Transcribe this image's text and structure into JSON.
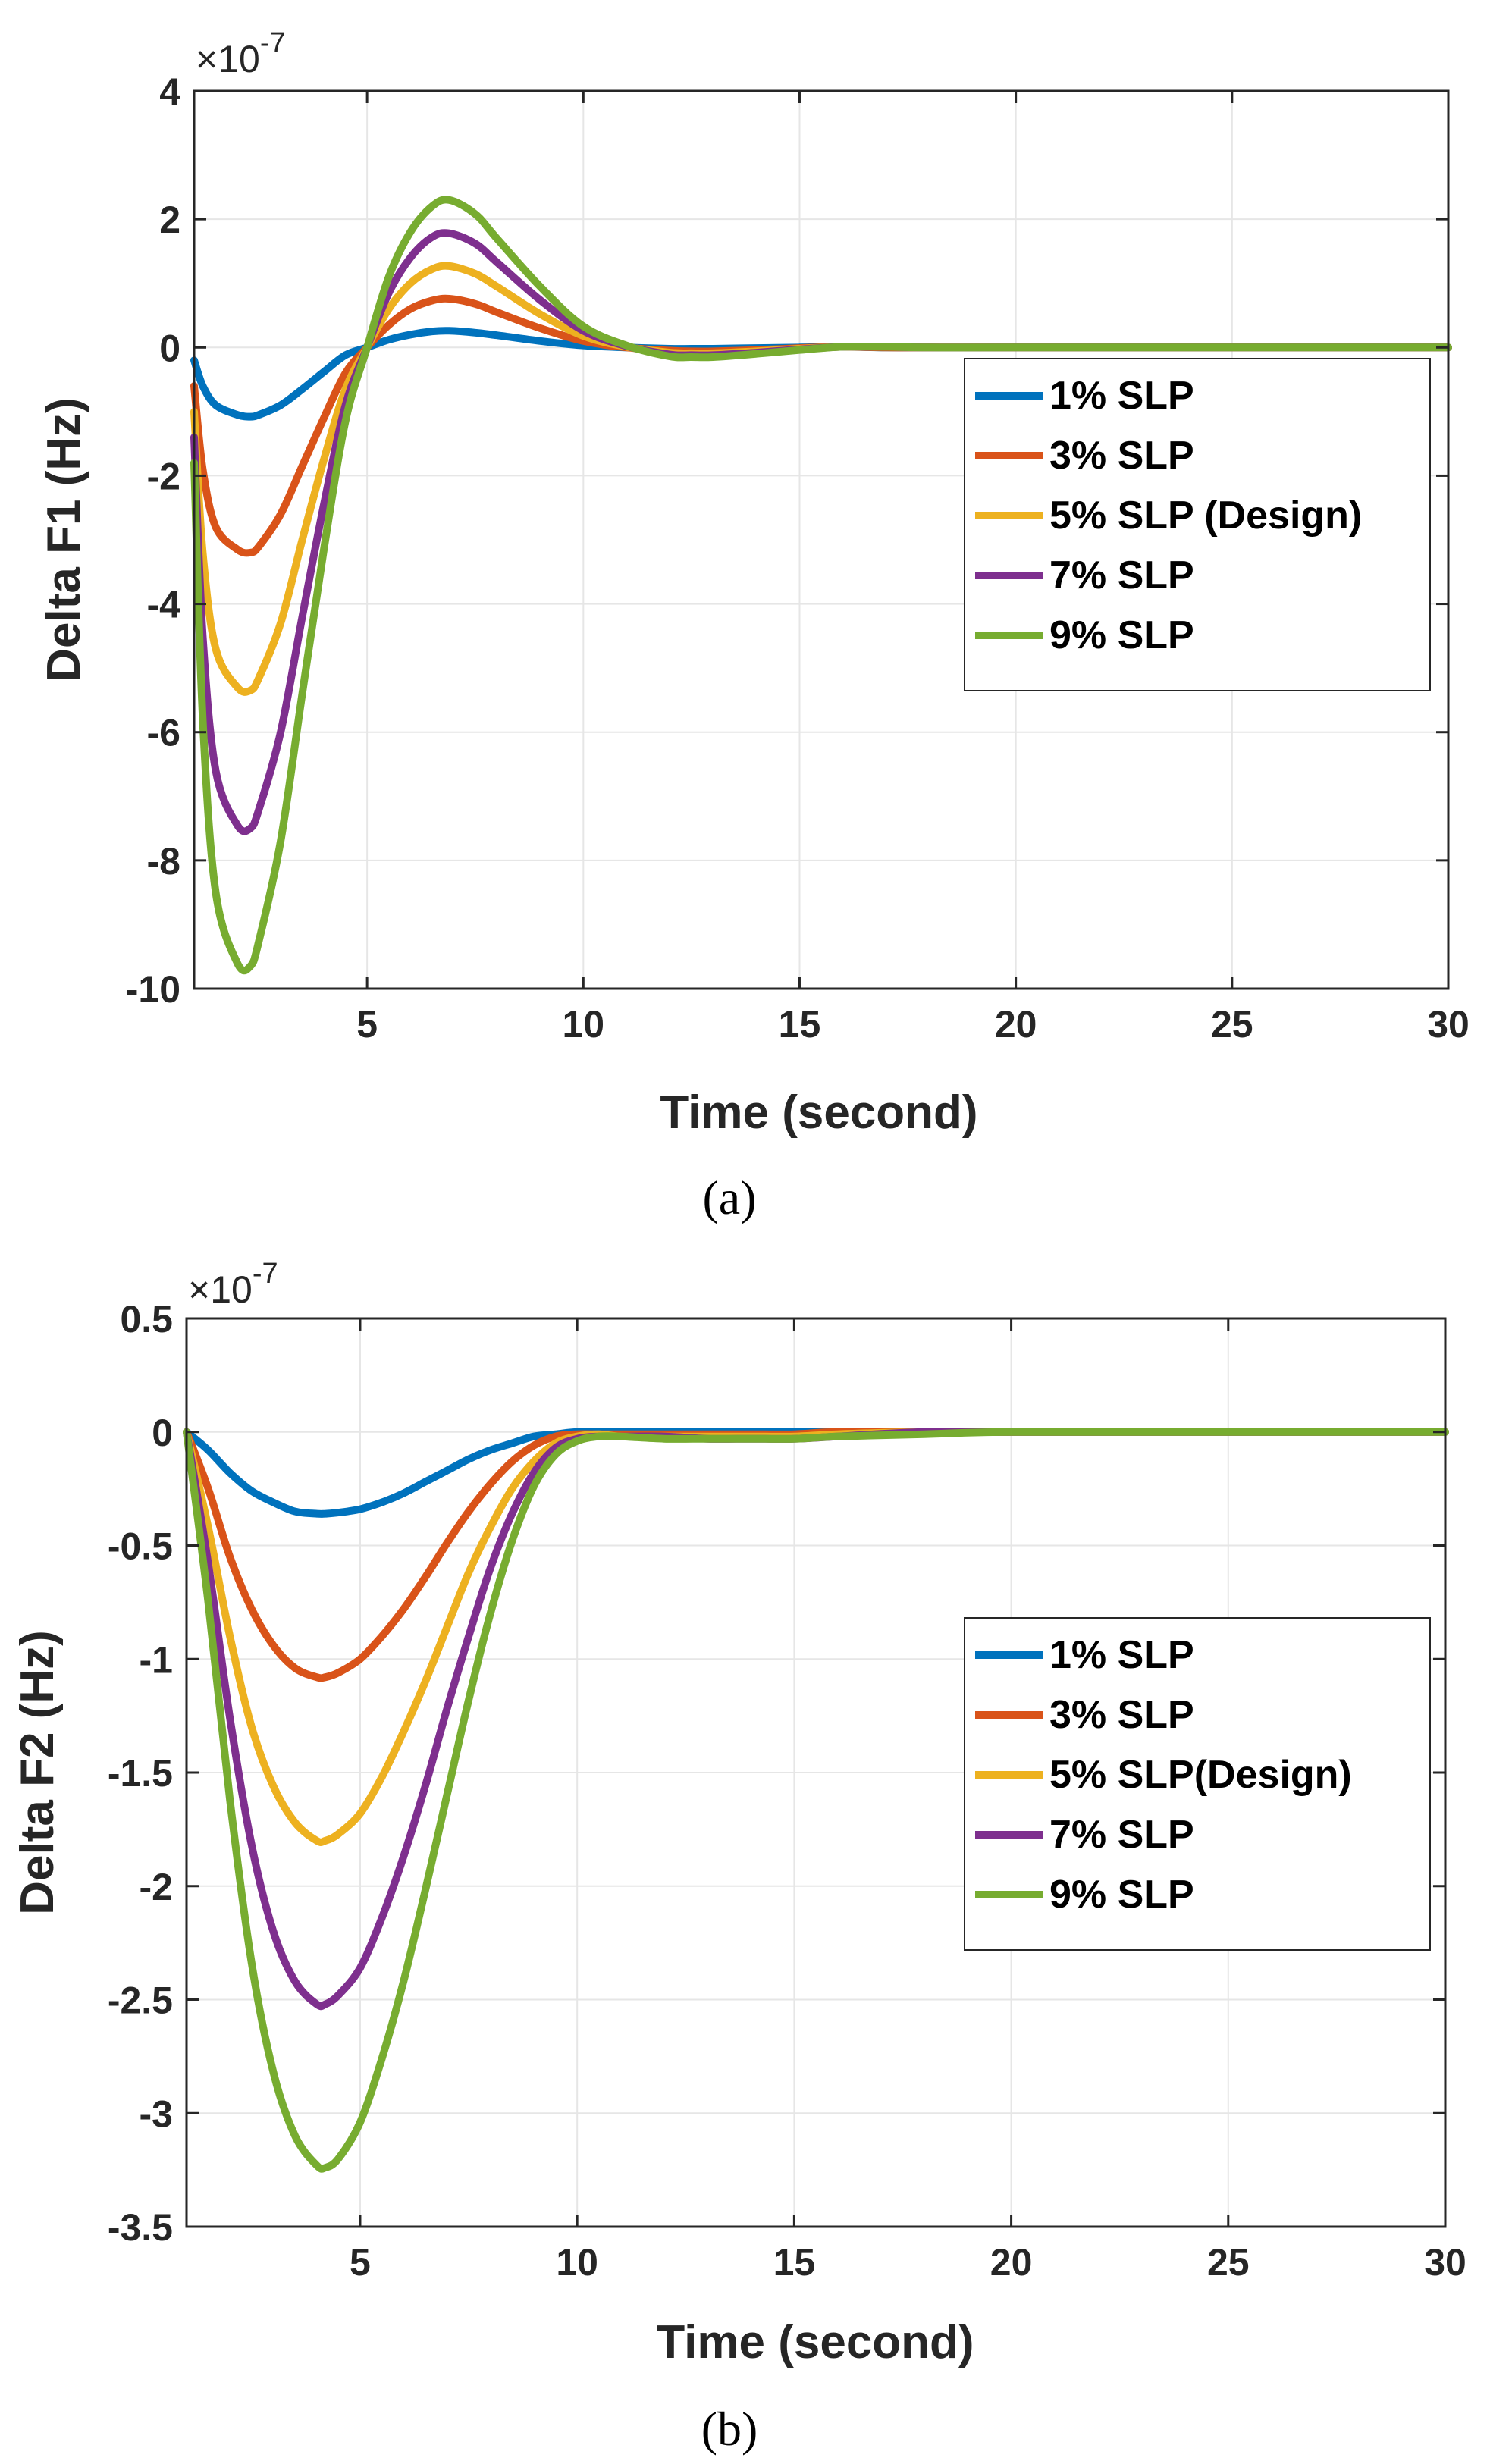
{
  "colors": {
    "series": [
      "#0072BD",
      "#D95319",
      "#EDB120",
      "#7E2F8E",
      "#77AC30"
    ],
    "grid": "#e6e6e6",
    "axis": "#262626"
  },
  "chart_data": [
    {
      "type": "line",
      "panel_label": "(a)",
      "title": "",
      "xlabel": "Time (second)",
      "ylabel": "Delta F1 (Hz)",
      "exponent_label": "×10",
      "exponent_power": "-7",
      "xlim": [
        1,
        30
      ],
      "ylim": [
        -10,
        4
      ],
      "xticks": [
        5,
        10,
        15,
        20,
        25,
        30
      ],
      "xtick_labels": [
        "5",
        "10",
        "15",
        "20",
        "25",
        "30"
      ],
      "yticks": [
        4,
        2,
        0,
        -2,
        -4,
        -6,
        -8,
        -10
      ],
      "ytick_labels": [
        "4",
        "2",
        "0",
        "-2",
        "-4",
        "-6",
        "-8",
        "-10"
      ],
      "grid": true,
      "legend_position": "right",
      "x": [
        1,
        1.2,
        1.5,
        2,
        2.3,
        2.5,
        3,
        3.5,
        4,
        4.5,
        5,
        5.5,
        6,
        6.5,
        6.9,
        7.5,
        8,
        9,
        10,
        11,
        12,
        12.5,
        13,
        14,
        15,
        16,
        17,
        18,
        20,
        25,
        30
      ],
      "series": [
        {
          "name": "1% SLP",
          "values": [
            -0.2,
            -0.6,
            -0.9,
            -1.05,
            -1.08,
            -1.05,
            -0.9,
            -0.65,
            -0.38,
            -0.12,
            0.0,
            0.12,
            0.2,
            0.25,
            0.26,
            0.23,
            0.19,
            0.1,
            0.03,
            0.0,
            -0.02,
            -0.02,
            -0.02,
            -0.01,
            0.0,
            0.01,
            0.0,
            0.0,
            0.0,
            0.0,
            0.0
          ]
        },
        {
          "name": "3% SLP",
          "values": [
            -0.6,
            -1.9,
            -2.8,
            -3.15,
            -3.2,
            -3.1,
            -2.6,
            -1.85,
            -1.1,
            -0.4,
            0.0,
            0.35,
            0.6,
            0.73,
            0.76,
            0.68,
            0.55,
            0.3,
            0.1,
            0.0,
            -0.05,
            -0.06,
            -0.06,
            -0.04,
            -0.01,
            0.01,
            0.0,
            0.0,
            0.0,
            0.0,
            0.0
          ]
        },
        {
          "name": "5% SLP (Design)",
          "values": [
            -1.0,
            -3.2,
            -4.7,
            -5.3,
            -5.35,
            -5.15,
            -4.3,
            -3.0,
            -1.75,
            -0.65,
            0.0,
            0.6,
            1.0,
            1.22,
            1.27,
            1.15,
            0.95,
            0.52,
            0.18,
            0.01,
            -0.08,
            -0.09,
            -0.09,
            -0.06,
            -0.02,
            0.01,
            0.01,
            0.0,
            0.0,
            0.0,
            0.0
          ]
        },
        {
          "name": "7% SLP",
          "values": [
            -1.4,
            -4.5,
            -6.6,
            -7.45,
            -7.5,
            -7.2,
            -6.0,
            -4.2,
            -2.45,
            -0.9,
            0.0,
            0.85,
            1.4,
            1.72,
            1.78,
            1.62,
            1.33,
            0.74,
            0.26,
            0.02,
            -0.11,
            -0.12,
            -0.12,
            -0.08,
            -0.03,
            0.01,
            0.01,
            0.0,
            0.0,
            0.0,
            0.0
          ]
        },
        {
          "name": "9% SLP",
          "values": [
            -1.8,
            -5.8,
            -8.5,
            -9.6,
            -9.65,
            -9.25,
            -7.7,
            -5.4,
            -3.15,
            -1.15,
            0.0,
            1.1,
            1.8,
            2.2,
            2.3,
            2.08,
            1.7,
            0.95,
            0.33,
            0.03,
            -0.14,
            -0.15,
            -0.15,
            -0.1,
            -0.04,
            0.01,
            0.01,
            0.0,
            0.0,
            0.0,
            0.0
          ]
        }
      ]
    },
    {
      "type": "line",
      "panel_label": "(b)",
      "title": "",
      "xlabel": "Time (second)",
      "ylabel": "Delta F2 (Hz)",
      "exponent_label": "×10",
      "exponent_power": "-7",
      "xlim": [
        1,
        30
      ],
      "ylim": [
        -3.5,
        0.5
      ],
      "xticks": [
        5,
        10,
        15,
        20,
        25,
        30
      ],
      "xtick_labels": [
        "5",
        "10",
        "15",
        "20",
        "25",
        "30"
      ],
      "yticks": [
        0.5,
        0,
        -0.5,
        -1,
        -1.5,
        -2,
        -2.5,
        -3,
        -3.5
      ],
      "ytick_labels": [
        "0.5",
        "0",
        "-0.5",
        "-1",
        "-1.5",
        "-2",
        "-2.5",
        "-3",
        "-3.5"
      ],
      "grid": true,
      "legend_position": "right",
      "x": [
        1,
        1.5,
        2,
        2.5,
        3,
        3.5,
        4,
        4.2,
        4.5,
        5,
        5.5,
        6,
        6.5,
        7,
        7.5,
        8,
        8.5,
        9,
        9.5,
        10,
        10.5,
        11,
        12,
        13,
        14,
        15,
        16,
        18,
        20,
        25,
        30
      ],
      "series": [
        {
          "name": "1% SLP",
          "values": [
            0.0,
            -0.08,
            -0.18,
            -0.26,
            -0.31,
            -0.35,
            -0.36,
            -0.36,
            -0.355,
            -0.34,
            -0.31,
            -0.27,
            -0.22,
            -0.17,
            -0.12,
            -0.08,
            -0.05,
            -0.02,
            -0.01,
            0.0,
            0.0,
            0.0,
            0.0,
            0.0,
            0.0,
            0.0,
            0.0,
            0.0,
            0.0,
            0.0,
            0.0
          ]
        },
        {
          "name": "3% SLP",
          "values": [
            0.0,
            -0.25,
            -0.55,
            -0.78,
            -0.94,
            -1.04,
            -1.08,
            -1.08,
            -1.06,
            -1.0,
            -0.9,
            -0.78,
            -0.64,
            -0.49,
            -0.35,
            -0.23,
            -0.13,
            -0.06,
            -0.02,
            -0.01,
            -0.01,
            -0.01,
            -0.01,
            -0.01,
            -0.01,
            -0.01,
            0.0,
            0.0,
            0.0,
            0.0,
            0.0
          ]
        },
        {
          "name": "5% SLP(Design)",
          "values": [
            0.0,
            -0.42,
            -0.9,
            -1.3,
            -1.56,
            -1.72,
            -1.8,
            -1.8,
            -1.77,
            -1.68,
            -1.52,
            -1.32,
            -1.1,
            -0.86,
            -0.62,
            -0.42,
            -0.25,
            -0.13,
            -0.05,
            -0.02,
            -0.01,
            -0.02,
            -0.02,
            -0.02,
            -0.02,
            -0.02,
            -0.01,
            0.0,
            0.0,
            0.0,
            0.0
          ]
        },
        {
          "name": "7% SLP",
          "values": [
            0.0,
            -0.58,
            -1.26,
            -1.82,
            -2.2,
            -2.42,
            -2.52,
            -2.52,
            -2.48,
            -2.36,
            -2.14,
            -1.87,
            -1.56,
            -1.22,
            -0.9,
            -0.6,
            -0.36,
            -0.18,
            -0.07,
            -0.03,
            -0.02,
            -0.02,
            -0.02,
            -0.03,
            -0.03,
            -0.03,
            -0.02,
            0.0,
            0.0,
            0.0,
            0.0
          ]
        },
        {
          "name": "9% SLP",
          "values": [
            0.0,
            -0.75,
            -1.62,
            -2.34,
            -2.82,
            -3.1,
            -3.23,
            -3.24,
            -3.2,
            -3.04,
            -2.76,
            -2.42,
            -2.02,
            -1.6,
            -1.18,
            -0.8,
            -0.48,
            -0.24,
            -0.1,
            -0.04,
            -0.02,
            -0.02,
            -0.03,
            -0.03,
            -0.03,
            -0.03,
            -0.02,
            -0.01,
            0.0,
            0.0,
            0.0
          ]
        }
      ]
    }
  ]
}
